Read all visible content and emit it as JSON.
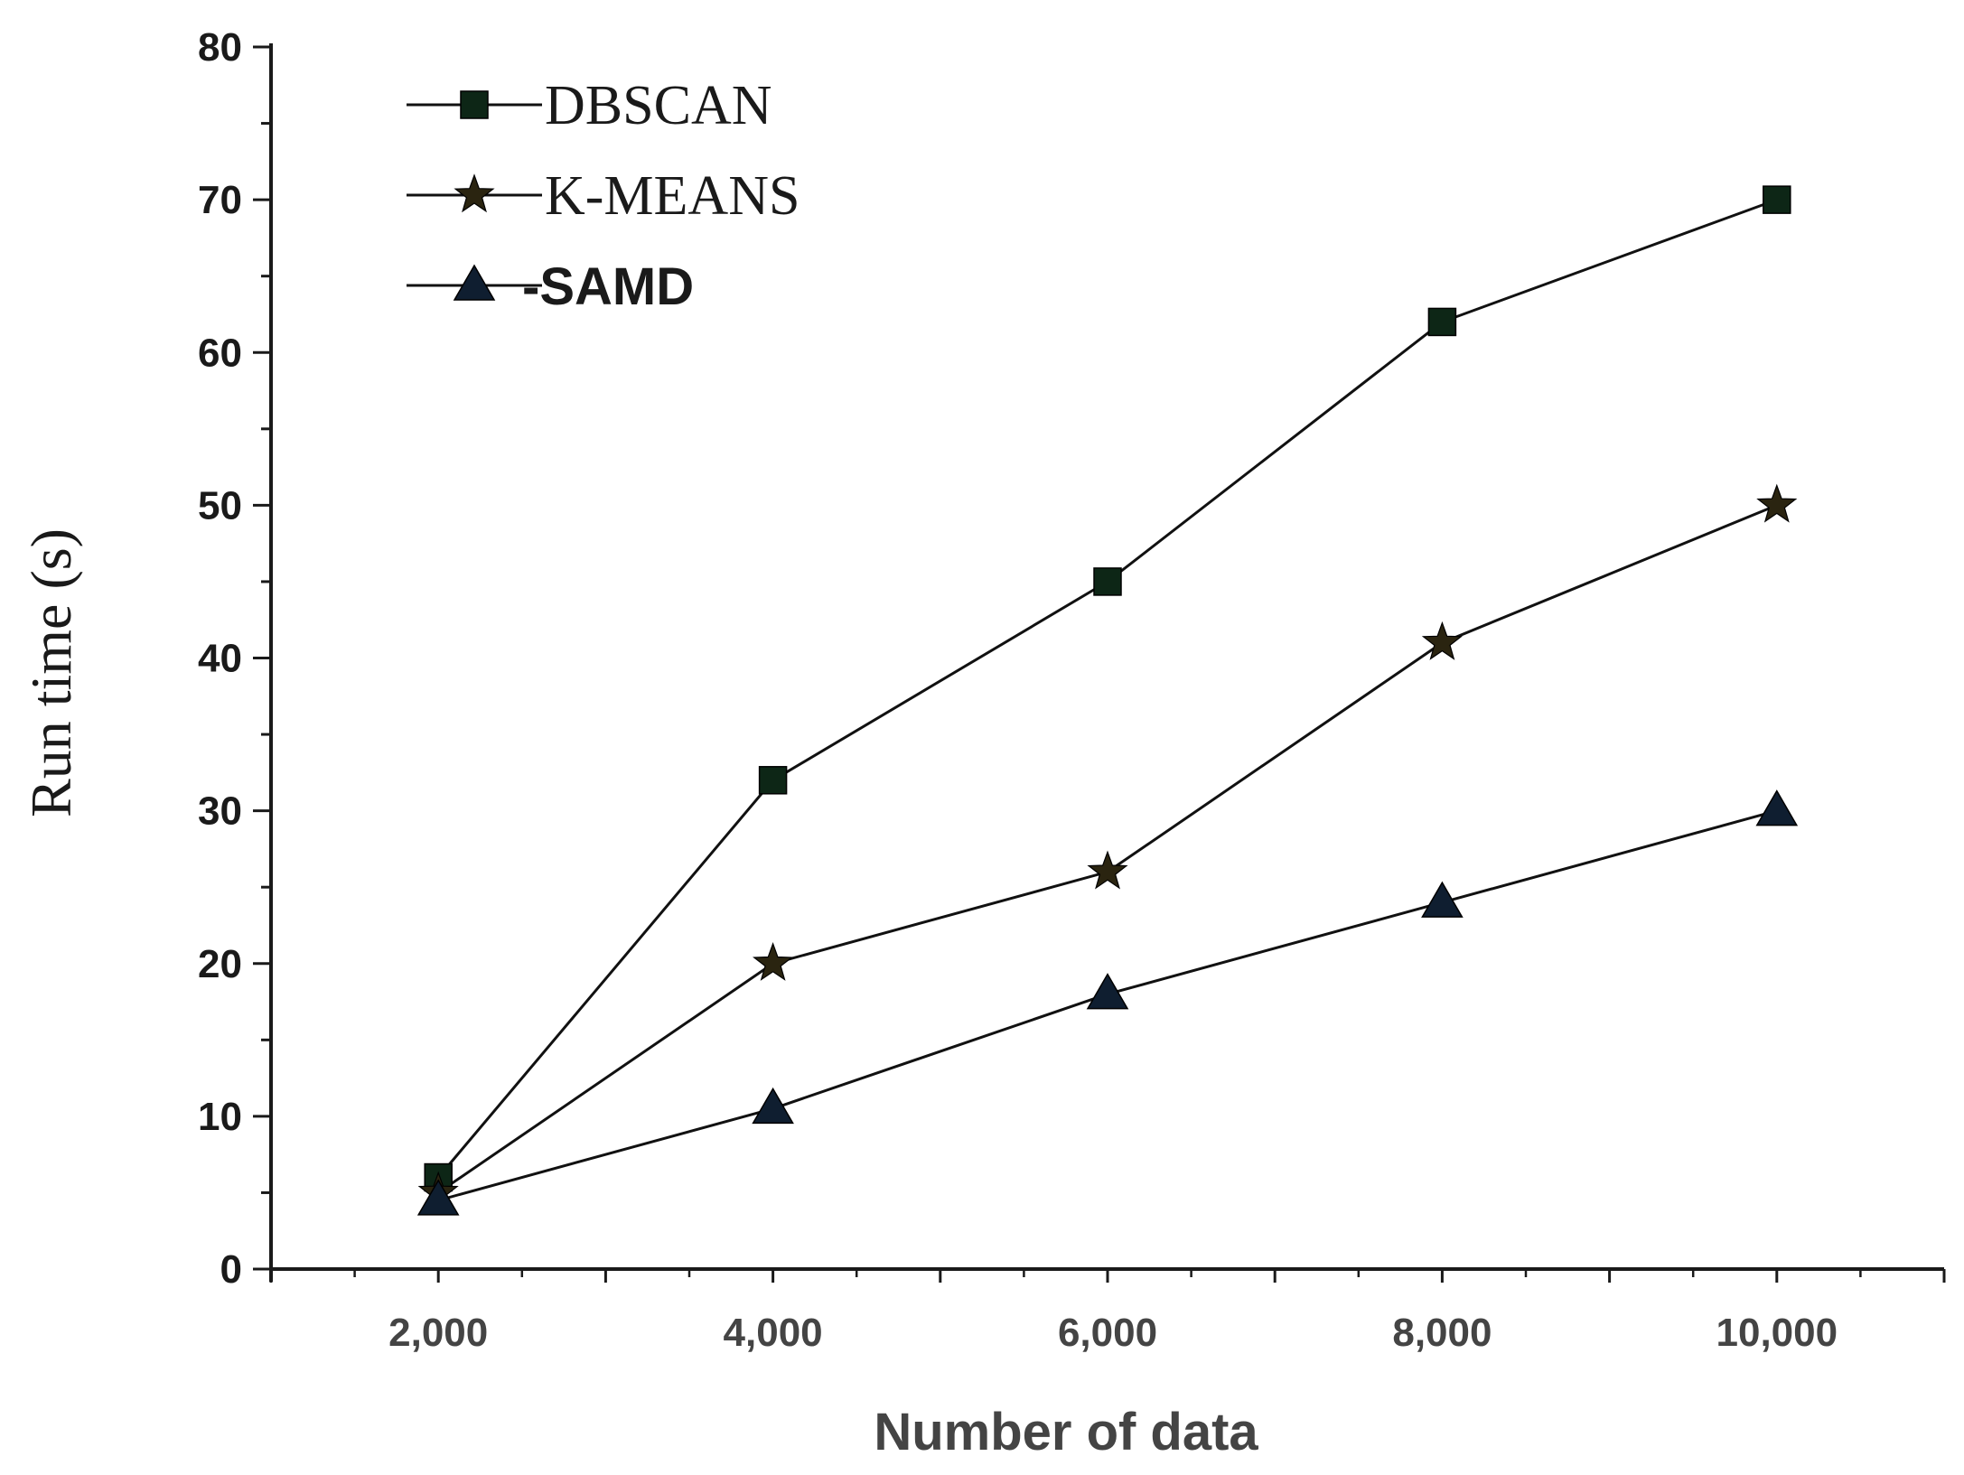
{
  "chart_data": {
    "type": "line",
    "title": "",
    "xlabel": "Number of data",
    "ylabel": "Run time (s)",
    "x": [
      2000,
      4000,
      6000,
      8000,
      10000
    ],
    "x_tick_labels": [
      "2,000",
      "4,000",
      "6,000",
      "8,000",
      "10,000"
    ],
    "xlim": [
      1000,
      11000
    ],
    "ylim": [
      0,
      80
    ],
    "y_ticks": [
      0,
      10,
      20,
      30,
      40,
      50,
      60,
      70,
      80
    ],
    "grid": false,
    "legend_position": "top-left",
    "series": [
      {
        "name": "DBSCAN",
        "legend_label": "DBSCAN",
        "marker": "square",
        "color": "#0d2616",
        "values": [
          6,
          32,
          45,
          62,
          70
        ]
      },
      {
        "name": "K-MEANS",
        "legend_label": "K-MEANS",
        "marker": "star",
        "color": "#2a2410",
        "values": [
          5,
          20,
          26,
          41,
          50
        ]
      },
      {
        "name": "SAMD",
        "legend_label": "-SAMD",
        "marker": "triangle",
        "color": "#0f1e30",
        "values": [
          4.5,
          10.5,
          18,
          24,
          30
        ]
      }
    ]
  }
}
